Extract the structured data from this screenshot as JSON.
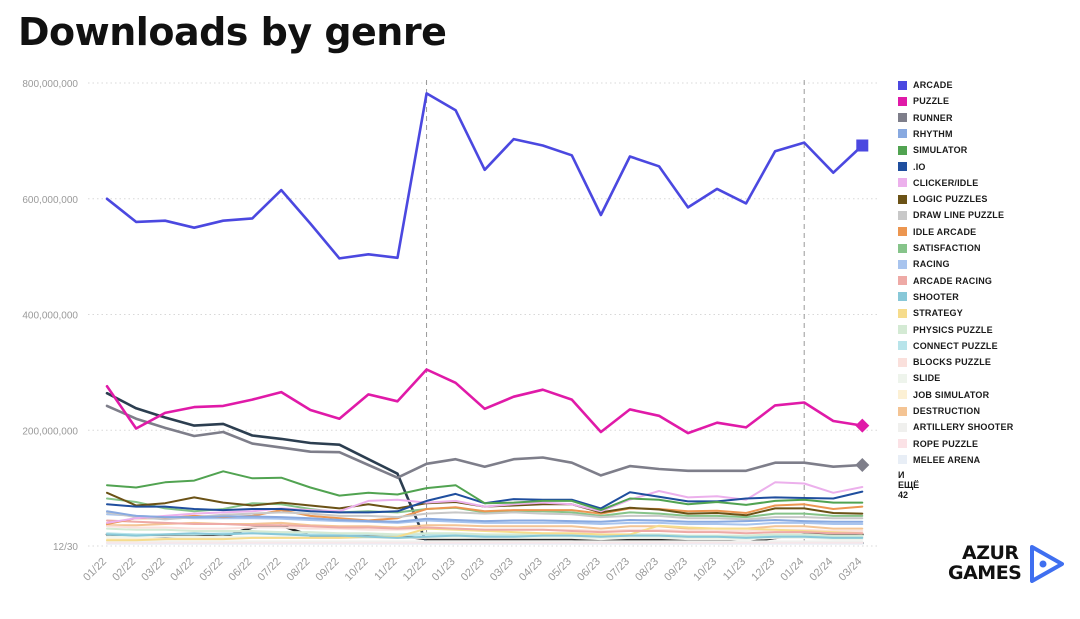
{
  "title": "Downloads by genre",
  "logo": {
    "line1": "AZUR",
    "line2": "GAMES",
    "accent_color": "#3f6ff0"
  },
  "legend_more": "И ЕЩЁ 42",
  "chart_data": {
    "type": "line",
    "title": "Downloads by genre",
    "xlabel": "",
    "ylabel": "",
    "ylim": [
      0,
      800000000
    ],
    "y_ticks": [
      {
        "value": 0,
        "label": "12/30"
      },
      {
        "value": 200000000,
        "label": "200,000,000"
      },
      {
        "value": 400000000,
        "label": "400,000,000"
      },
      {
        "value": 600000000,
        "label": "600,000,000"
      },
      {
        "value": 800000000,
        "label": "800,000,000"
      }
    ],
    "grid": "horizontal dotted",
    "legend_position": "right",
    "vertical_markers": [
      "12/22",
      "01/24"
    ],
    "x": [
      "01/22",
      "02/22",
      "03/22",
      "04/22",
      "05/22",
      "06/22",
      "07/22",
      "08/22",
      "09/22",
      "10/22",
      "11/22",
      "12/22",
      "01/23",
      "02/23",
      "03/23",
      "04/23",
      "05/23",
      "06/23",
      "07/23",
      "08/23",
      "09/23",
      "10/23",
      "11/23",
      "12/23",
      "01/24",
      "02/24",
      "03/24"
    ],
    "series": [
      {
        "name": "ARCADE",
        "color": "#4b48e0",
        "marker": "square",
        "values": [
          600,
          560,
          562,
          550,
          562,
          566,
          615,
          557,
          497,
          504,
          498,
          782,
          753,
          650,
          703,
          692,
          675,
          572,
          673,
          656,
          585,
          617,
          592,
          682,
          697,
          645,
          692
        ]
      },
      {
        "name": "PUZZLE",
        "color": "#e01aa8",
        "marker": "diamond",
        "values": [
          276,
          203,
          230,
          240,
          242,
          253,
          266,
          235,
          220,
          262,
          250,
          305,
          282,
          237,
          258,
          270,
          253,
          197,
          236,
          225,
          195,
          213,
          205,
          243,
          248,
          216,
          208
        ]
      },
      {
        "name": "RUNNER",
        "color": "#7e7e8a",
        "marker": "diamond",
        "values": [
          242,
          220,
          204,
          190,
          197,
          177,
          170,
          163,
          162,
          140,
          118,
          142,
          150,
          137,
          150,
          153,
          144,
          122,
          138,
          133,
          130,
          130,
          130,
          144,
          144,
          137,
          140
        ]
      },
      {
        "name": "RHYTHM",
        "color": "#88a9e0",
        "values": [
          60,
          52,
          50,
          50,
          51,
          51,
          50,
          48,
          45,
          43,
          42,
          47,
          45,
          43,
          44,
          44,
          43,
          42,
          45,
          44,
          42,
          42,
          43,
          45,
          43,
          42,
          42
        ]
      },
      {
        "name": "SIMULATOR",
        "color": "#51a351",
        "values": [
          105,
          101,
          110,
          113,
          129,
          117,
          118,
          101,
          87,
          92,
          89,
          100,
          105,
          74,
          75,
          78,
          78,
          62,
          82,
          80,
          72,
          76,
          71,
          78,
          80,
          75,
          75
        ]
      },
      {
        "name": ".IO",
        "color": "#1f4e9e",
        "values": [
          72,
          68,
          68,
          64,
          62,
          64,
          64,
          60,
          58,
          58,
          60,
          78,
          90,
          74,
          81,
          80,
          80,
          65,
          93,
          85,
          77,
          77,
          82,
          84,
          83,
          82,
          94
        ]
      },
      {
        "name": "CLICKER/IDLE",
        "color": "#ecb0ec",
        "values": [
          40,
          48,
          52,
          56,
          58,
          60,
          65,
          62,
          60,
          78,
          80,
          75,
          78,
          68,
          72,
          75,
          72,
          60,
          80,
          95,
          84,
          86,
          80,
          110,
          108,
          92,
          102
        ]
      },
      {
        "name": "LOGIC PUZZLES",
        "color": "#6b5216",
        "values": [
          92,
          70,
          74,
          84,
          75,
          70,
          75,
          70,
          65,
          72,
          65,
          74,
          76,
          68,
          70,
          72,
          72,
          58,
          66,
          63,
          56,
          57,
          53,
          65,
          65,
          57,
          56
        ]
      },
      {
        "name": "DRAW LINE PUZZLE",
        "color": "#c8c8c8",
        "values": [
          58,
          50,
          46,
          50,
          54,
          56,
          58,
          56,
          52,
          52,
          50,
          56,
          58,
          56,
          58,
          56,
          55,
          50,
          52,
          52,
          48,
          48,
          46,
          50,
          50,
          48,
          48
        ]
      },
      {
        "name": "IDLE ARCADE",
        "color": "#ec9650",
        "values": [
          38,
          48,
          48,
          52,
          50,
          52,
          62,
          52,
          48,
          44,
          48,
          64,
          67,
          60,
          62,
          62,
          62,
          56,
          65,
          64,
          60,
          61,
          57,
          70,
          72,
          64,
          68
        ]
      },
      {
        "name": "SATISFACTION",
        "color": "#86c48a",
        "values": [
          82,
          76,
          65,
          60,
          64,
          74,
          72,
          64,
          58,
          60,
          58,
          64,
          66,
          58,
          60,
          60,
          58,
          52,
          58,
          56,
          52,
          52,
          50,
          56,
          56,
          52,
          52
        ]
      },
      {
        "name": "RACING",
        "color": "#a8c4ee",
        "values": [
          55,
          52,
          50,
          48,
          48,
          48,
          47,
          45,
          43,
          42,
          40,
          44,
          42,
          40,
          40,
          40,
          40,
          38,
          40,
          40,
          38,
          38,
          37,
          40,
          40,
          38,
          38
        ]
      },
      {
        "name": "ARCADE RACING",
        "color": "#eeaaa6",
        "values": [
          44,
          42,
          40,
          38,
          38,
          36,
          36,
          34,
          32,
          32,
          30,
          32,
          30,
          28,
          28,
          28,
          26,
          24,
          26,
          26,
          24,
          24,
          22,
          24,
          24,
          22,
          22
        ]
      },
      {
        "name": "SHOOTER",
        "color": "#88c8d8",
        "values": [
          20,
          18,
          20,
          22,
          20,
          22,
          20,
          18,
          18,
          16,
          14,
          16,
          18,
          16,
          16,
          18,
          18,
          16,
          18,
          18,
          16,
          16,
          14,
          16,
          16,
          14,
          14
        ]
      },
      {
        "name": "STRATEGY",
        "color": "#f6dc8c",
        "values": [
          10,
          10,
          12,
          12,
          12,
          14,
          14,
          14,
          14,
          16,
          16,
          30,
          28,
          26,
          24,
          22,
          22,
          20,
          20,
          35,
          32,
          30,
          30,
          28,
          26,
          24,
          22
        ]
      },
      {
        "name": "PHYSICS PUZZLE",
        "color": "#d4ead4",
        "values": [
          30,
          28,
          28,
          26,
          26,
          26,
          24,
          24,
          22,
          22,
          20,
          22,
          22,
          20,
          20,
          20,
          20,
          18,
          20,
          20,
          18,
          18,
          18,
          20,
          20,
          18,
          18
        ]
      },
      {
        "name": "CONNECT PUZZLE",
        "color": "#b8e4ea",
        "values": [
          22,
          20,
          20,
          20,
          22,
          22,
          22,
          20,
          20,
          20,
          18,
          20,
          20,
          18,
          18,
          18,
          18,
          16,
          18,
          18,
          16,
          16,
          16,
          18,
          18,
          16,
          16
        ]
      },
      {
        "name": "BLOCKS PUZZLE",
        "color": "#fae0dc",
        "values": [
          34,
          32,
          32,
          30,
          30,
          32,
          32,
          30,
          30,
          28,
          28,
          30,
          30,
          28,
          28,
          28,
          28,
          26,
          28,
          28,
          26,
          26,
          26,
          28,
          28,
          26,
          26
        ]
      },
      {
        "name": "SLIDE",
        "color": "#eef4ec",
        "values": [
          16,
          16,
          16,
          16,
          16,
          16,
          16,
          14,
          14,
          14,
          14,
          14,
          14,
          14,
          14,
          14,
          14,
          12,
          14,
          14,
          12,
          12,
          12,
          14,
          14,
          12,
          12
        ]
      },
      {
        "name": "JOB SIMULATOR",
        "color": "#fcf0d4",
        "values": [
          12,
          12,
          12,
          14,
          14,
          14,
          14,
          14,
          14,
          14,
          14,
          16,
          16,
          16,
          16,
          16,
          16,
          14,
          16,
          16,
          14,
          14,
          14,
          16,
          16,
          14,
          14
        ]
      },
      {
        "name": "DESTRUCTION",
        "color": "#f4c494",
        "values": [
          36,
          36,
          38,
          40,
          38,
          38,
          40,
          36,
          34,
          34,
          32,
          36,
          36,
          34,
          34,
          34,
          34,
          30,
          34,
          34,
          30,
          30,
          30,
          34,
          34,
          30,
          30
        ]
      },
      {
        "name": "ARTILLERY SHOOTER",
        "color": "#f0f0ee",
        "values": [
          8,
          8,
          8,
          8,
          8,
          8,
          8,
          8,
          8,
          8,
          8,
          8,
          8,
          8,
          8,
          8,
          8,
          8,
          8,
          8,
          8,
          8,
          8,
          8,
          8,
          8,
          8
        ]
      },
      {
        "name": "ROPE PUZZLE",
        "color": "#fbe2e6",
        "values": [
          6,
          6,
          6,
          6,
          6,
          6,
          6,
          6,
          6,
          6,
          6,
          6,
          6,
          6,
          6,
          6,
          6,
          6,
          6,
          6,
          6,
          6,
          6,
          6,
          6,
          6,
          6
        ]
      },
      {
        "name": "MELEE ARENA",
        "color": "#e8eef6",
        "values": [
          4,
          4,
          4,
          4,
          4,
          4,
          4,
          4,
          4,
          4,
          4,
          4,
          4,
          4,
          4,
          4,
          4,
          4,
          4,
          4,
          4,
          4,
          4,
          4,
          4,
          4,
          4
        ]
      },
      {
        "name": "",
        "color": "#2c3e50",
        "values": [
          264,
          238,
          222,
          208,
          211,
          191,
          185,
          178,
          175,
          150,
          125,
          5,
          5,
          5,
          5,
          5,
          5,
          5,
          5,
          5,
          5,
          5,
          5,
          5,
          5,
          5,
          5
        ]
      },
      {
        "name": "",
        "color": "#2a2a2a",
        "values": [
          20,
          18,
          16,
          18,
          16,
          32,
          35,
          18,
          18,
          18,
          18,
          12,
          12,
          12,
          12,
          12,
          12,
          10,
          10,
          10,
          10,
          10,
          6,
          14,
          20,
          20,
          20
        ]
      }
    ]
  }
}
